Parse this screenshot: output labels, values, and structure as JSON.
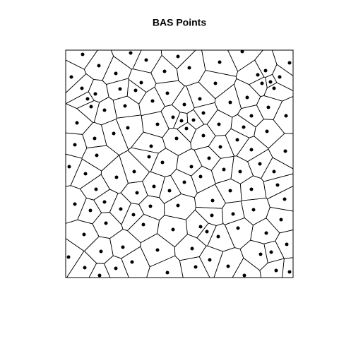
{
  "chart_data": {
    "type": "scatter",
    "title": "BAS Points",
    "voronoi": true,
    "color": "#000000",
    "xlim": [
      0,
      322
    ],
    "ylim": [
      0,
      322
    ],
    "x": [
      24,
      92,
      114,
      159,
      218,
      250,
      317,
      47,
      175,
      283,
      140,
      8,
      71,
      272,
      303,
      290,
      278,
      107,
      23,
      77,
      99,
      144,
      212,
      257,
      295,
      31,
      42,
      36,
      55,
      84,
      123,
      168,
      190,
      233,
      287,
      152,
      164,
      195,
      312,
      263,
      16,
      68,
      88,
      130,
      171,
      181,
      195,
      217,
      252,
      285,
      41,
      157,
      121,
      243,
      219,
      263,
      311,
      13,
      44,
      118,
      137,
      178,
      224,
      247,
      203,
      275,
      295,
      5,
      28,
      72,
      97,
      300,
      191,
      168,
      125,
      147,
      233,
      263,
      43,
      101,
      13,
      35,
      78,
      55,
      310,
      208,
      120,
      159,
      207,
      237,
      266,
      96,
      57,
      110,
      152,
      191,
      200,
      216,
      26,
      305,
      244,
      284,
      313,
      81,
      50,
      130,
      179,
      204,
      276,
      291,
      4,
      71,
      27,
      94,
      144,
      184,
      230,
      253,
      298,
      317,
      48
    ],
    "y": [
      316,
      318,
      308,
      313,
      305,
      320,
      304,
      300,
      297,
      293,
      292,
      284,
      289,
      287,
      284,
      277,
      275,
      276,
      268,
      267,
      265,
      261,
      275,
      255,
      268,
      253,
      260,
      242,
      237,
      243,
      250,
      245,
      253,
      248,
      241,
      227,
      222,
      233,
      229,
      229,
      219,
      204,
      212,
      217,
      211,
      223,
      201,
      217,
      213,
      207,
      197,
      197,
      186,
      195,
      185,
      181,
      179,
      188,
      173,
      171,
      163,
      157,
      153,
      150,
      169,
      161,
      150,
      157,
      147,
      142,
      150,
      131,
      143,
      135,
      129,
      123,
      123,
      125,
      125,
      120,
      104,
      95,
      97,
      107,
      111,
      109,
      101,
      102,
      88,
      90,
      96,
      89,
      77,
      75,
      68,
      72,
      65,
      58,
      61,
      82,
      70,
      63,
      47,
      43,
      37,
      39,
      41,
      25,
      33,
      36,
      29,
      13,
      14,
      22,
      7,
      15,
      16,
      3,
      10,
      8,
      3
    ]
  }
}
